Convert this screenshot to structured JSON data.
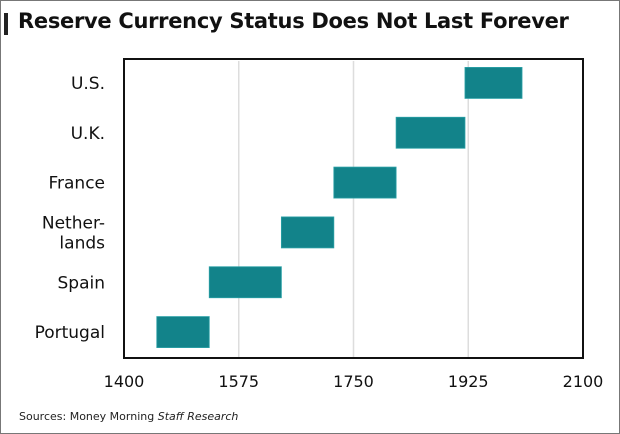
{
  "chart_data": {
    "type": "bar",
    "orientation": "horizontal-range",
    "title": "Reserve Currency Status Does Not Last Forever",
    "source": "Sources: Money Morning Staff Research",
    "categories": [
      "U.S.",
      "U.K.",
      "France",
      "Netherlands",
      "Spain",
      "Portugal"
    ],
    "category_labels": [
      [
        "U.S."
      ],
      [
        "U.K."
      ],
      [
        "France"
      ],
      [
        "Nether-",
        "lands"
      ],
      [
        "Spain"
      ],
      [
        "Portugal"
      ]
    ],
    "ranges": [
      [
        1920,
        2007
      ],
      [
        1815,
        1920
      ],
      [
        1720,
        1815
      ],
      [
        1640,
        1720
      ],
      [
        1530,
        1640
      ],
      [
        1450,
        1530
      ]
    ],
    "xlim": [
      1400,
      2100
    ],
    "xticks": [
      1400,
      1575,
      1750,
      1925,
      2100
    ],
    "grid": "vertical",
    "bar_color": "#12838a",
    "grid_color": "#dddddd"
  },
  "source_prefix": "Sources: Money Morning ",
  "source_italic": "Staff Research"
}
